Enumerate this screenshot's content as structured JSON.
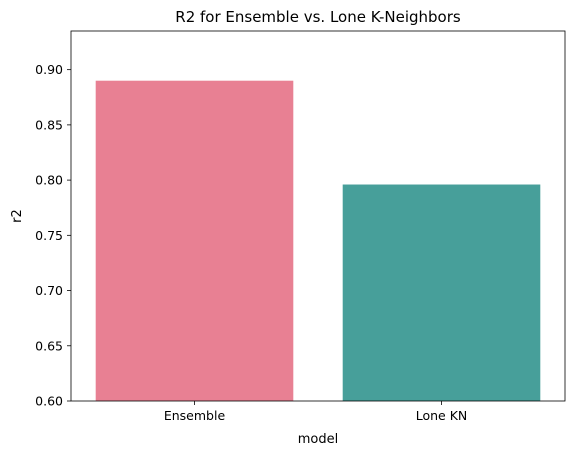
{
  "chart_data": {
    "type": "bar",
    "title": "R2 for Ensemble vs. Lone K-Neighbors",
    "xlabel": "model",
    "ylabel": "r2",
    "categories": [
      "Ensemble",
      "Lone KN"
    ],
    "values": [
      0.89,
      0.796
    ],
    "colors": [
      "#e88093",
      "#479f9a"
    ],
    "ylim": [
      0.6,
      0.935
    ],
    "yticks": [
      "0.60",
      "0.65",
      "0.70",
      "0.75",
      "0.80",
      "0.85",
      "0.90"
    ],
    "grid": false,
    "legend": "none"
  }
}
